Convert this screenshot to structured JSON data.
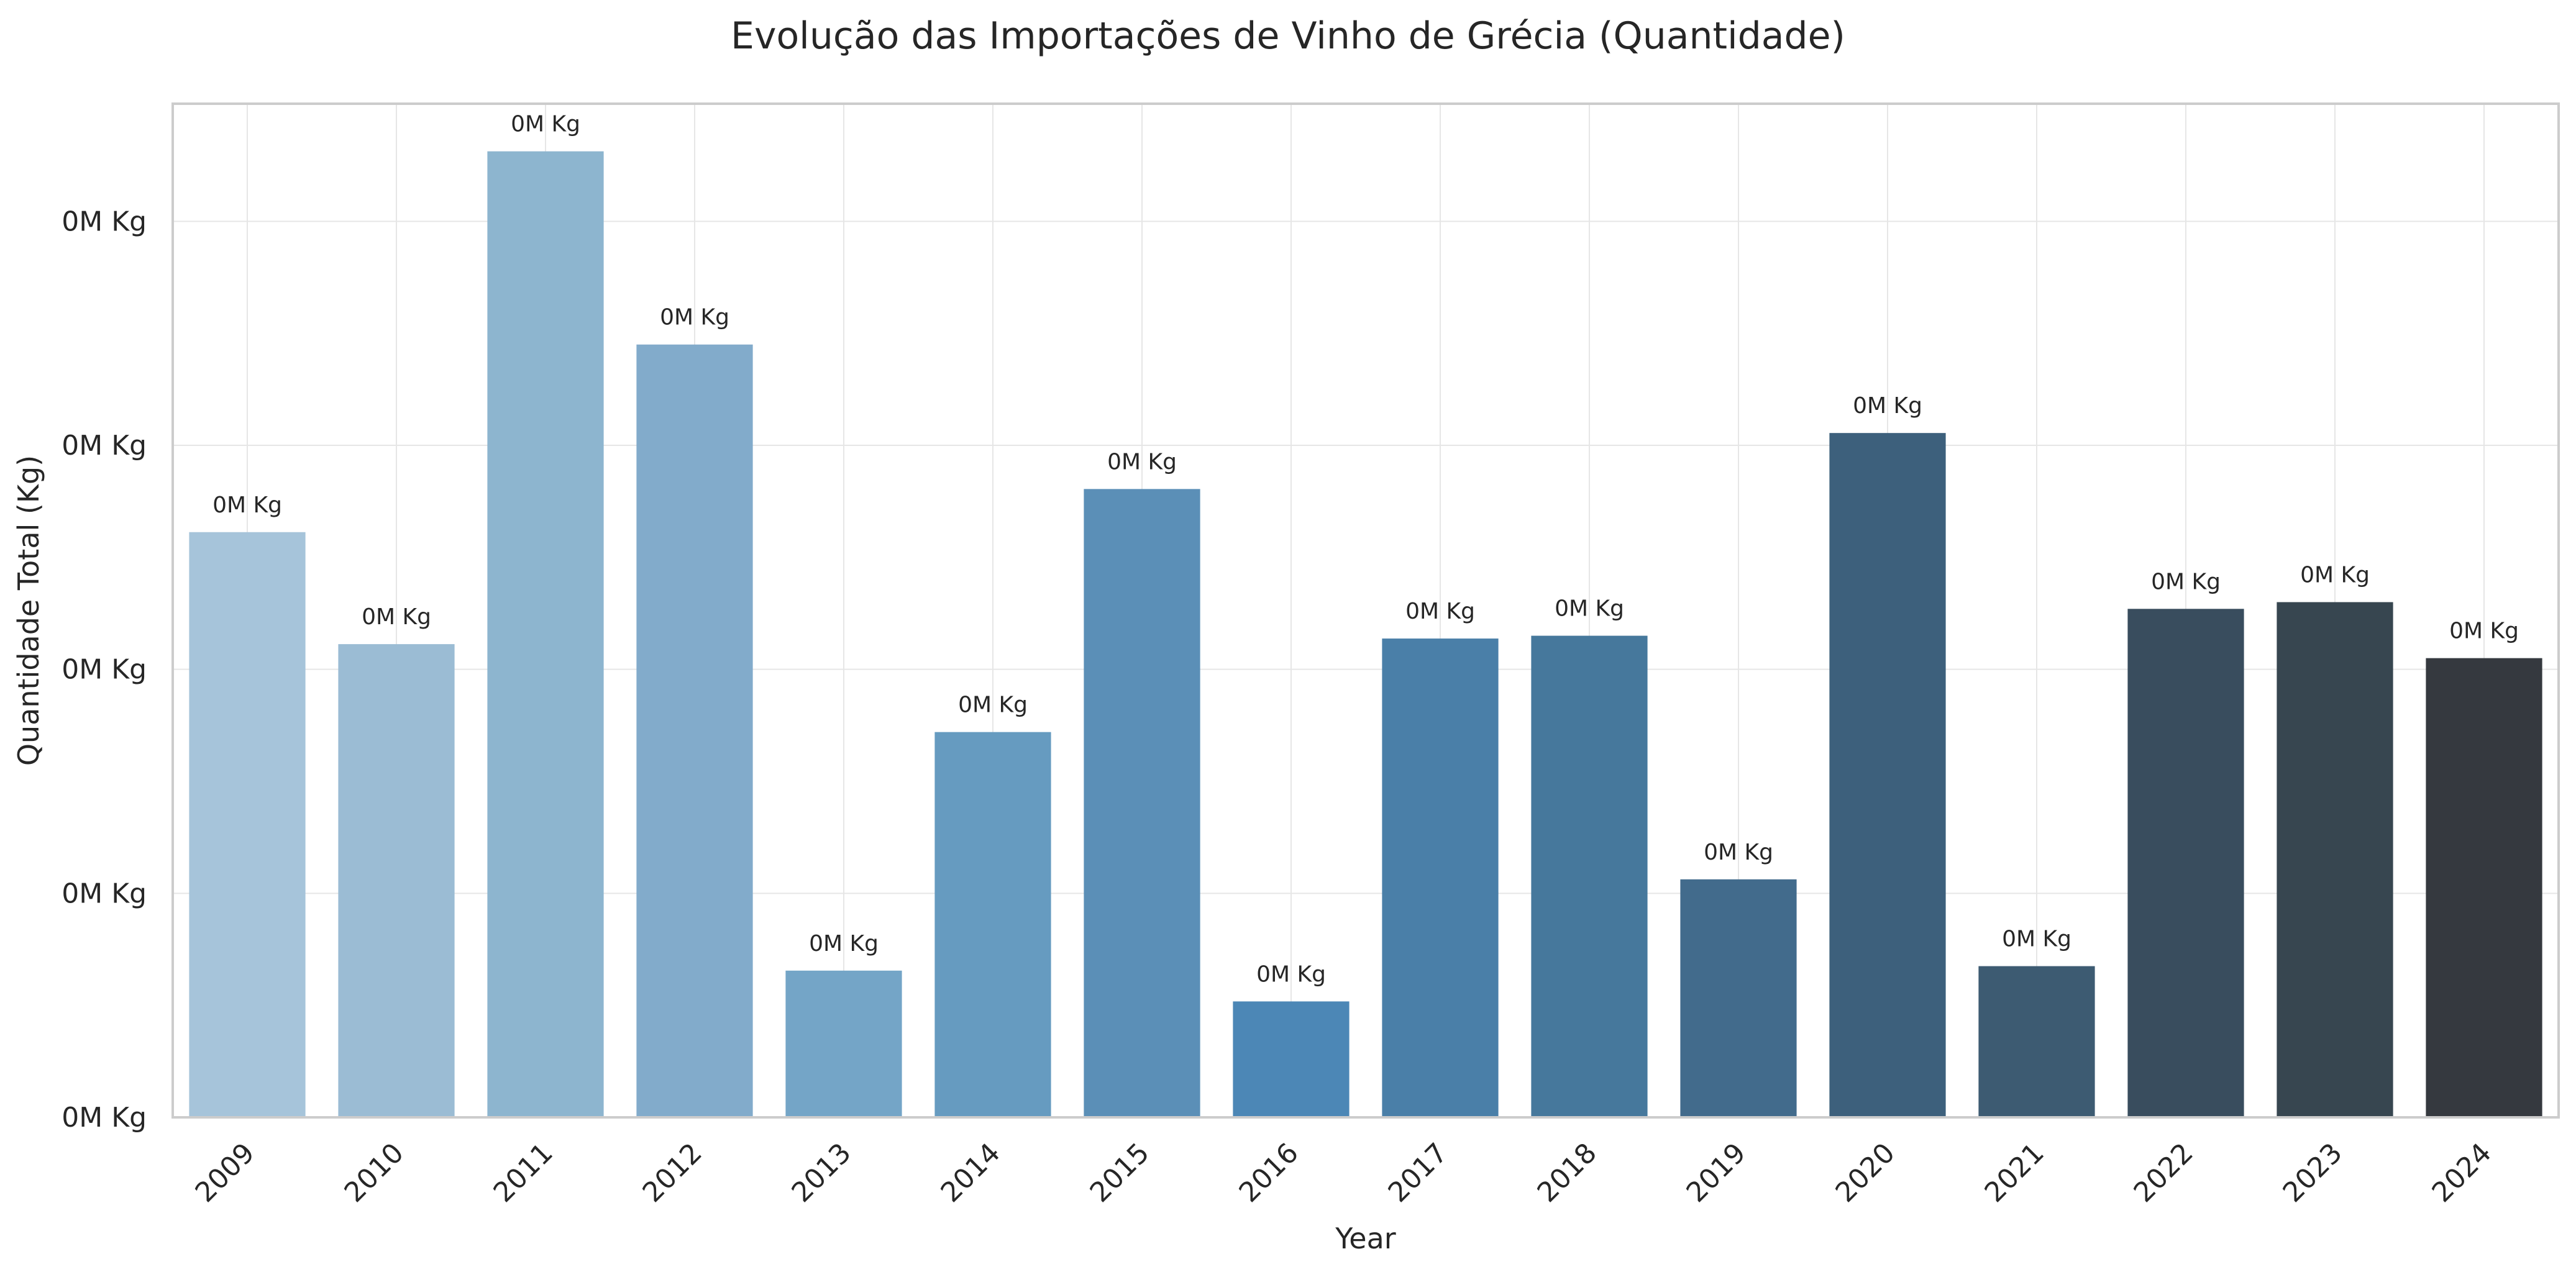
{
  "chart_data": {
    "type": "bar",
    "title": "Evolução das Importações de Vinho de Grécia (Quantidade)",
    "xlabel": "Year",
    "ylabel": "Quantidade Total (Kg)",
    "categories": [
      "2009",
      "2010",
      "2011",
      "2012",
      "2013",
      "2014",
      "2015",
      "2016",
      "2017",
      "2018",
      "2019",
      "2020",
      "2021",
      "2022",
      "2023",
      "2024"
    ],
    "values": [
      1045,
      845,
      1725,
      1380,
      262,
      688,
      1122,
      207,
      855,
      860,
      425,
      1222,
      270,
      908,
      920,
      820
    ],
    "value_labels": [
      "0M Kg",
      "0M Kg",
      "0M Kg",
      "0M Kg",
      "0M Kg",
      "0M Kg",
      "0M Kg",
      "0M Kg",
      "0M Kg",
      "0M Kg",
      "0M Kg",
      "0M Kg",
      "0M Kg",
      "0M Kg",
      "0M Kg",
      "0M Kg"
    ],
    "yticks": [
      0,
      400,
      800,
      1200,
      1600
    ],
    "ytick_labels": [
      "0M Kg",
      "0M Kg",
      "0M Kg",
      "0M Kg",
      "0M Kg"
    ],
    "ylim": [
      0,
      1810
    ],
    "grid": true,
    "colors": [
      "#a6c4da",
      "#9bbcd4",
      "#8db5cf",
      "#82abcb",
      "#74a5c7",
      "#669bc0",
      "#5b8fb7",
      "#4c87b6",
      "#4a7fa8",
      "#46789c",
      "#426b8c",
      "#3d607c",
      "#3d5b72",
      "#394d5e",
      "#374650",
      "#35393f"
    ]
  }
}
